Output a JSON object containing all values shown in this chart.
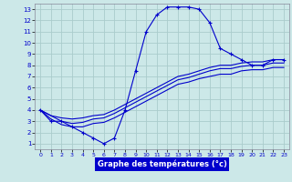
{
  "xlabel": "Graphe des températures (°c)",
  "background_color": "#cce8e8",
  "grid_color": "#aacccc",
  "line_color": "#0000cc",
  "xlim": [
    -0.5,
    23.5
  ],
  "ylim": [
    0.5,
    13.5
  ],
  "xticks": [
    0,
    1,
    2,
    3,
    4,
    5,
    6,
    7,
    8,
    9,
    10,
    11,
    12,
    13,
    14,
    15,
    16,
    17,
    18,
    19,
    20,
    21,
    22,
    23
  ],
  "yticks": [
    1,
    2,
    3,
    4,
    5,
    6,
    7,
    8,
    9,
    10,
    11,
    12,
    13
  ],
  "line1_x": [
    0,
    1,
    2,
    3,
    4,
    5,
    6,
    7,
    8,
    9,
    10,
    11,
    12,
    13,
    14,
    15,
    16,
    17,
    18,
    19,
    20,
    21,
    22,
    23
  ],
  "line1_y": [
    4,
    3,
    3,
    2.5,
    2,
    1.5,
    1,
    1.5,
    4,
    7.5,
    11,
    12.5,
    13.2,
    13.2,
    13.2,
    13,
    11.8,
    9.5,
    9,
    8.5,
    8,
    8,
    8.5,
    8.5
  ],
  "line2_x": [
    0,
    1,
    2,
    3,
    4,
    5,
    6,
    7,
    8,
    9,
    10,
    11,
    12,
    13,
    14,
    15,
    16,
    17,
    18,
    19,
    20,
    21,
    22,
    23
  ],
  "line2_y": [
    4,
    3.5,
    3.3,
    3.2,
    3.3,
    3.5,
    3.6,
    4.0,
    4.5,
    5.0,
    5.5,
    6.0,
    6.5,
    7.0,
    7.2,
    7.5,
    7.8,
    8.0,
    8.0,
    8.2,
    8.3,
    8.3,
    8.5,
    8.5
  ],
  "line3_x": [
    0,
    1,
    2,
    3,
    4,
    5,
    6,
    7,
    8,
    9,
    10,
    11,
    12,
    13,
    14,
    15,
    16,
    17,
    18,
    19,
    20,
    21,
    22,
    23
  ],
  "line3_y": [
    4,
    3.5,
    3.0,
    2.8,
    2.9,
    3.2,
    3.3,
    3.7,
    4.2,
    4.7,
    5.2,
    5.7,
    6.2,
    6.7,
    6.9,
    7.2,
    7.5,
    7.7,
    7.7,
    7.9,
    8.0,
    8.0,
    8.2,
    8.2
  ],
  "line4_x": [
    0,
    1,
    2,
    3,
    4,
    5,
    6,
    7,
    8,
    9,
    10,
    11,
    12,
    13,
    14,
    15,
    16,
    17,
    18,
    19,
    20,
    21,
    22,
    23
  ],
  "line4_y": [
    4,
    3.2,
    2.7,
    2.5,
    2.5,
    2.8,
    2.9,
    3.3,
    3.8,
    4.3,
    4.8,
    5.3,
    5.8,
    6.3,
    6.5,
    6.8,
    7.0,
    7.2,
    7.2,
    7.5,
    7.6,
    7.6,
    7.8,
    7.8
  ]
}
